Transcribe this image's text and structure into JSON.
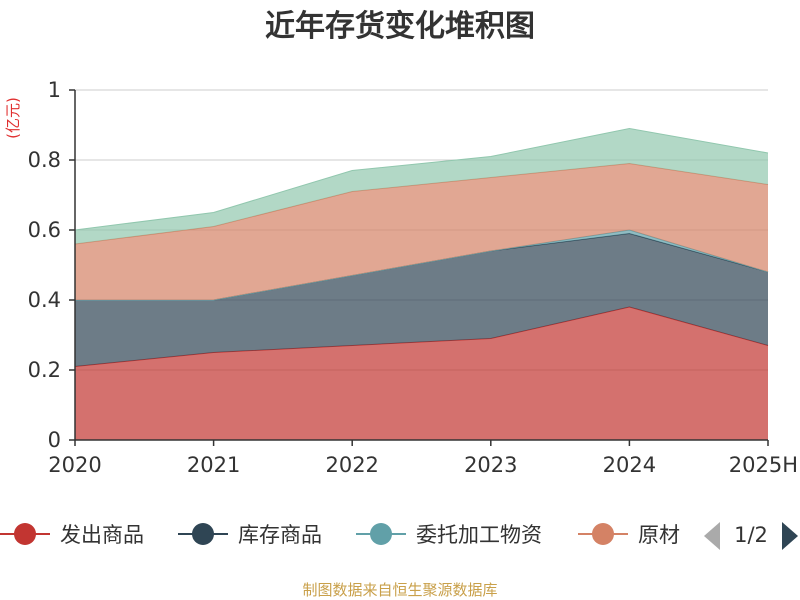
{
  "chart_data": {
    "type": "area",
    "stacked": true,
    "title": "近年存货变化堆积图",
    "unit": "(亿元)",
    "categories": [
      "2020",
      "2021",
      "2022",
      "2023",
      "2024",
      "2025H"
    ],
    "ylim": [
      0,
      1
    ],
    "yticks": [
      "0",
      "0.2",
      "0.4",
      "0.6",
      "0.8",
      "1"
    ],
    "grid": true,
    "series": [
      {
        "name": "发出商品",
        "color": "#c23531",
        "values": [
          0.21,
          0.25,
          0.27,
          0.29,
          0.38,
          0.27
        ]
      },
      {
        "name": "库存商品",
        "color": "#2f4554",
        "values": [
          0.19,
          0.15,
          0.2,
          0.25,
          0.21,
          0.21
        ]
      },
      {
        "name": "委托加工物资",
        "color": "#61a0a8",
        "values": [
          0.0,
          0.0,
          0.0,
          0.0,
          0.01,
          0.0
        ]
      },
      {
        "name": "原材料",
        "color": "#d48265",
        "values": [
          0.16,
          0.21,
          0.24,
          0.21,
          0.19,
          0.25
        ]
      },
      {
        "name": "",
        "color": "#91c7ae",
        "values": [
          0.04,
          0.04,
          0.06,
          0.06,
          0.1,
          0.09
        ]
      }
    ],
    "legend": {
      "items": [
        "发出商品",
        "库存商品",
        "委托加工物资",
        "原材"
      ],
      "page": "1/2",
      "position": "bottom"
    }
  },
  "source": "制图数据来自恒生聚源数据库"
}
